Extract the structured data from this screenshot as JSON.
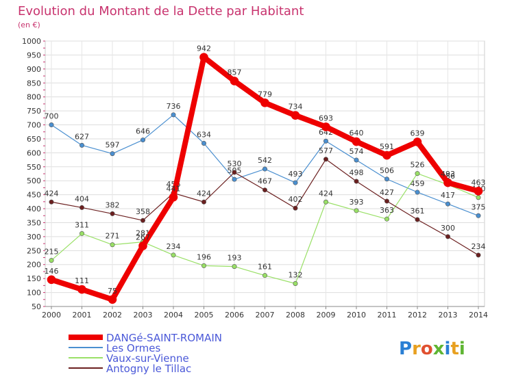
{
  "chart_data": {
    "type": "line",
    "title": "Evolution du Montant de la Dette par Habitant",
    "subtitle": "(en €)",
    "xlabel": "",
    "ylabel": "",
    "x": [
      "2000",
      "2001",
      "2002",
      "2003",
      "2004",
      "2005",
      "2006",
      "2007",
      "2008",
      "2009",
      "2010",
      "2011",
      "2012",
      "2013",
      "2014"
    ],
    "ylim": [
      50,
      1000
    ],
    "yticks": [
      50,
      100,
      150,
      200,
      250,
      300,
      350,
      400,
      450,
      500,
      550,
      600,
      650,
      700,
      750,
      800,
      850,
      900,
      950,
      1000
    ],
    "grid": true,
    "legend_position": "bottom-left",
    "series": [
      {
        "name": "DANGé-SAINT-ROMAIN",
        "color": "#ee0000",
        "width": 8,
        "values": [
          146,
          111,
          75,
          267,
          441,
          942,
          857,
          779,
          734,
          693,
          640,
          591,
          639,
          493,
          463
        ],
        "labels": [
          "146",
          "111",
          "75",
          "267",
          "441",
          "942",
          "857",
          "779",
          "734",
          "693",
          "640",
          "591",
          "639",
          "493",
          "463"
        ]
      },
      {
        "name": "Les Ormes",
        "color": "#4a8fd0",
        "width": 1.2,
        "values": [
          700,
          627,
          597,
          646,
          736,
          634,
          505,
          542,
          493,
          642,
          574,
          506,
          459,
          417,
          375
        ],
        "labels": [
          "700",
          "627",
          "597",
          "646",
          "736",
          "634",
          "505",
          "542",
          "493",
          "642",
          "574",
          "506",
          "459",
          "417",
          "375"
        ]
      },
      {
        "name": "Vaux-sur-Vienne",
        "color": "#99e066",
        "width": 1.2,
        "values": [
          215,
          311,
          271,
          281,
          234,
          196,
          193,
          161,
          132,
          424,
          393,
          363,
          526,
          486,
          440
        ],
        "labels": [
          "215",
          "311",
          "271",
          "281",
          "234",
          "196",
          "193",
          "161",
          "132",
          "424",
          "393",
          "363",
          "526",
          "486",
          "440"
        ]
      },
      {
        "name": "Antogny le Tillac",
        "color": "#6b1f1f",
        "width": 1.2,
        "values": [
          424,
          404,
          382,
          358,
          456,
          424,
          530,
          467,
          402,
          577,
          498,
          427,
          361,
          300,
          234
        ],
        "labels": [
          "424",
          "404",
          "382",
          "358",
          "456",
          "424",
          "530",
          "467",
          "402",
          "577",
          "498",
          "427",
          "361",
          "300",
          "234"
        ]
      }
    ]
  },
  "logo": {
    "text": "Proxiti"
  }
}
